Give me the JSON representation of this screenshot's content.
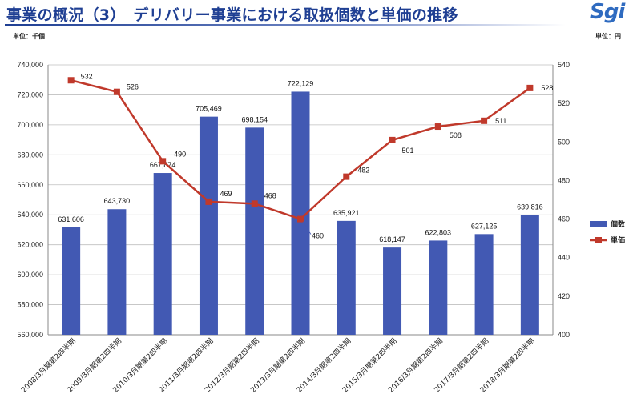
{
  "header": {
    "title": "事業の概況（3）　デリバリー事業における取扱個数と単価の推移",
    "logo_text": "Sgi"
  },
  "units": {
    "left": "単位：千個",
    "right": "単位：円"
  },
  "colors": {
    "title": "#1f3f93",
    "bar": "#4259b3",
    "line": "#c0392b",
    "grid": "#bfbfbf"
  },
  "chart_data": {
    "type": "bar+line",
    "categories": [
      "2008/3月期第2四半期",
      "2009/3月期第2四半期",
      "2010/3月期第2四半期",
      "2011/3月期第2四半期",
      "2012/3月期第2四半期",
      "2013/3月期第2四半期",
      "2014/3月期第2四半期",
      "2015/3月期第2四半期",
      "2016/3月期第2四半期",
      "2017/3月期第2四半期",
      "2018/3月期第2四半期"
    ],
    "series": [
      {
        "name": "個数",
        "type": "bar",
        "axis": "left",
        "values": [
          631606,
          643730,
          667874,
          705469,
          698154,
          722129,
          635921,
          618147,
          622803,
          627125,
          639816
        ],
        "labels": [
          "631,606",
          "643,730",
          "667,874",
          "705,469",
          "698,154",
          "722,129",
          "635,921",
          "618,147",
          "622,803",
          "627,125",
          "639,816"
        ]
      },
      {
        "name": "単価",
        "type": "line",
        "axis": "right",
        "values": [
          532,
          526,
          490,
          469,
          468,
          460,
          482,
          501,
          508,
          511,
          528
        ],
        "labels": [
          "532",
          "526",
          "490",
          "469",
          "468",
          "460",
          "482",
          "501",
          "508",
          "511",
          "528"
        ]
      }
    ],
    "y_left": {
      "range": [
        560000,
        740000
      ],
      "ticks": [
        "560,000",
        "580,000",
        "600,000",
        "620,000",
        "640,000",
        "660,000",
        "680,000",
        "700,000",
        "720,000",
        "740,000"
      ]
    },
    "y_right": {
      "range": [
        400,
        540
      ],
      "ticks": [
        "400",
        "420",
        "440",
        "460",
        "480",
        "500",
        "520",
        "540"
      ]
    },
    "grid": true,
    "legend_position": "right"
  }
}
